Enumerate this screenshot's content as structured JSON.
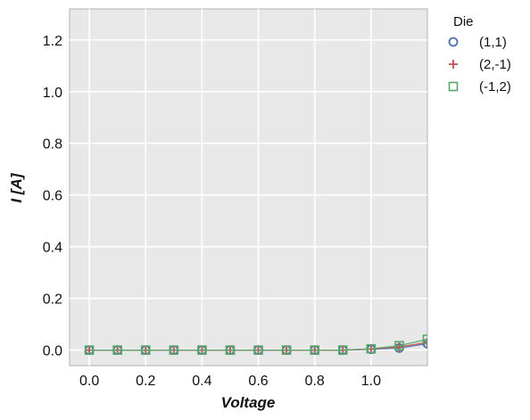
{
  "chart_data": {
    "type": "line",
    "title": "",
    "xlabel": "Voltage",
    "ylabel": "I [A]",
    "xlim": [
      -0.07,
      1.2
    ],
    "ylim": [
      -0.06,
      1.32
    ],
    "x_ticks": [
      0.0,
      0.2,
      0.4,
      0.6,
      0.8,
      1.0
    ],
    "x_tick_labels": [
      "0.0",
      "0.2",
      "0.4",
      "0.6",
      "0.8",
      "1.0"
    ],
    "y_ticks": [
      0.0,
      0.2,
      0.4,
      0.6,
      0.8,
      1.0,
      1.2
    ],
    "y_tick_labels": [
      "0.0",
      "0.2",
      "0.4",
      "0.6",
      "0.8",
      "1.0",
      "1.2"
    ],
    "grid": true,
    "legend_title": "Die",
    "legend_position": "outside-right",
    "x": [
      0.0,
      0.1,
      0.2,
      0.3,
      0.4,
      0.5,
      0.6,
      0.7,
      0.8,
      0.9,
      1.0,
      1.1,
      1.2
    ],
    "series": [
      {
        "name": "(1,1)",
        "marker": "circle",
        "color": "#4c72b0",
        "values": [
          0.0,
          0.0,
          0.0,
          0.0,
          0.0,
          0.0,
          0.0,
          0.0,
          0.0,
          0.0,
          0.003,
          0.008,
          0.025
        ]
      },
      {
        "name": "(2,-1)",
        "marker": "plus",
        "color": "#c44e52",
        "values": [
          0.0,
          0.0,
          0.0,
          0.0,
          0.0,
          0.0,
          0.0,
          0.0,
          0.0,
          0.0,
          0.004,
          0.012,
          0.03
        ]
      },
      {
        "name": "(-1,2)",
        "marker": "square",
        "color": "#55a868",
        "values": [
          0.0,
          0.0,
          0.0,
          0.0,
          0.0,
          0.0,
          0.0,
          0.0,
          0.0,
          0.0,
          0.005,
          0.017,
          0.042
        ]
      }
    ]
  }
}
